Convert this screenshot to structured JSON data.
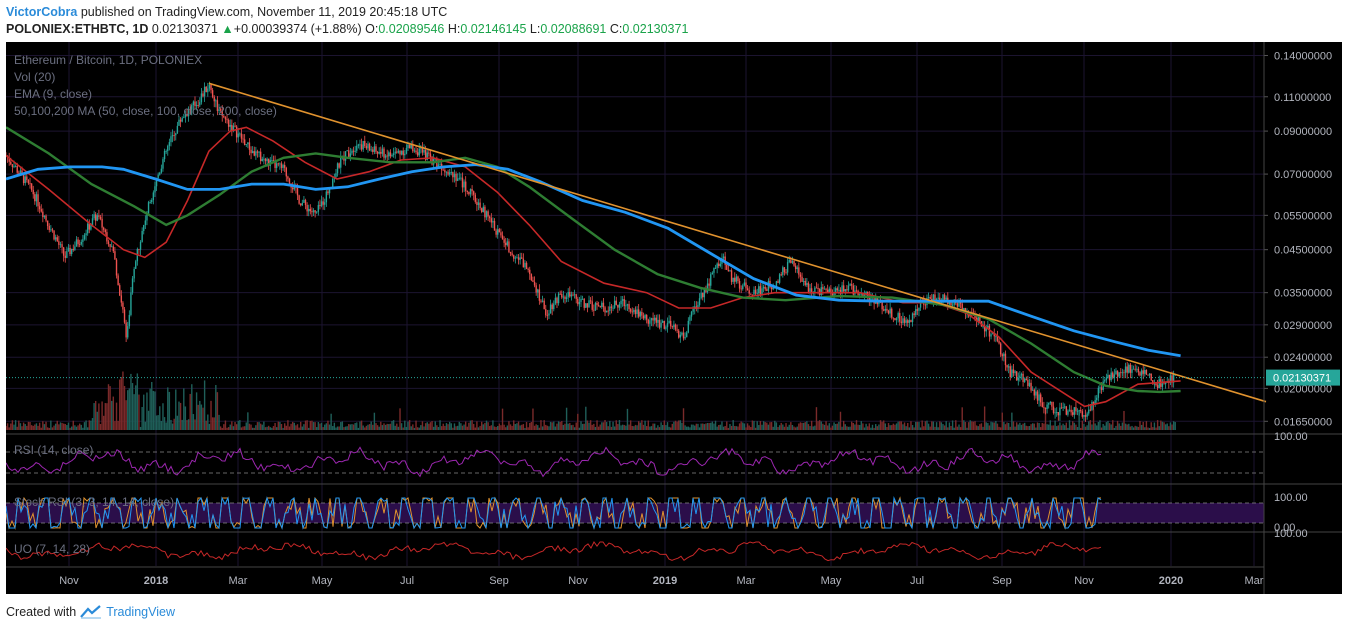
{
  "header": {
    "author": "VictorCobra",
    "published_text": "published on TradingView.com, November 11, 2019 20:45:18 UTC",
    "symbol": "POLONIEX:ETHBTC, 1D",
    "last": "0.02130371",
    "change": "+0.00039374 (+1.88%)",
    "o_label": "O:",
    "o_value": "0.02089546",
    "h_label": "H:",
    "h_value": "0.02146145",
    "l_label": "L:",
    "l_value": "0.02088691",
    "c_label": "C:",
    "c_value": "0.02130371"
  },
  "indicators": {
    "title": "Ethereum / Bitcoin, 1D, POLONIEX",
    "vol": "Vol (20)",
    "ema": "EMA (9, close)",
    "ma": "50,100,200 MA (50, close, 100, close, 200, close)",
    "rsi": "RSI (14, close)",
    "stoch": "Stoch RSI (3, 3, 14, 14, close)",
    "uo": "UO (7, 14, 28)"
  },
  "footer": {
    "created_with": "Created with",
    "brand": "TradingView"
  },
  "colors": {
    "background": "#000000",
    "candle_up": "#26a69a",
    "candle_down": "#ef5350",
    "ma50": "#c62828",
    "ma100": "#2e7d32",
    "ma200": "#2196f3",
    "trendline": "#e0922e",
    "rsi": "#9c27b0",
    "stoch_k": "#2196f3",
    "stoch_d": "#e0922e",
    "uo": "#c62828",
    "price_label_bg": "#26a69a"
  },
  "chart_data": {
    "type": "line",
    "title": "Ethereum / Bitcoin, 1D, POLONIEX",
    "price_axis": [
      "0.14000000",
      "0.11000000",
      "0.09000000",
      "0.07000000",
      "0.05500000",
      "0.04500000",
      "0.03500000",
      "0.02900000",
      "0.02400000",
      "0.02000000",
      "0.01650000"
    ],
    "current_price_label": "0.02130371",
    "current_price": 0.02130371,
    "rsi_axis": [
      "100.00"
    ],
    "stoch_axis": [
      "100.00",
      "0.00"
    ],
    "uo_axis": [
      "100.00"
    ],
    "time_axis": [
      "Nov",
      "2018",
      "Mar",
      "May",
      "Jul",
      "Sep",
      "Nov",
      "2019",
      "Mar",
      "May",
      "Jul",
      "Sep",
      "Nov",
      "2020",
      "Mar"
    ],
    "time_axis_bold": [
      "2018",
      "2019",
      "2020"
    ],
    "series": [
      {
        "name": "ETHBTC",
        "values": [
          [
            0,
            0.078
          ],
          [
            10,
            0.072
          ],
          [
            25,
            0.063
          ],
          [
            40,
            0.052
          ],
          [
            55,
            0.043
          ],
          [
            70,
            0.048
          ],
          [
            85,
            0.055
          ],
          [
            100,
            0.045
          ],
          [
            108,
            0.033
          ],
          [
            113,
            0.027
          ],
          [
            120,
            0.04
          ],
          [
            135,
            0.06
          ],
          [
            150,
            0.08
          ],
          [
            165,
            0.098
          ],
          [
            180,
            0.107
          ],
          [
            190,
            0.118
          ],
          [
            200,
            0.1
          ],
          [
            215,
            0.09
          ],
          [
            230,
            0.08
          ],
          [
            245,
            0.075
          ],
          [
            260,
            0.072
          ],
          [
            275,
            0.06
          ],
          [
            290,
            0.055
          ],
          [
            300,
            0.062
          ],
          [
            315,
            0.077
          ],
          [
            330,
            0.084
          ],
          [
            345,
            0.08
          ],
          [
            360,
            0.078
          ],
          [
            380,
            0.082
          ],
          [
            400,
            0.076
          ],
          [
            420,
            0.07
          ],
          [
            440,
            0.06
          ],
          [
            460,
            0.05
          ],
          [
            475,
            0.044
          ],
          [
            490,
            0.04
          ],
          [
            505,
            0.031
          ],
          [
            520,
            0.035
          ],
          [
            540,
            0.033
          ],
          [
            560,
            0.032
          ],
          [
            580,
            0.033
          ],
          [
            600,
            0.03
          ],
          [
            620,
            0.029
          ],
          [
            635,
            0.027
          ],
          [
            645,
            0.032
          ],
          [
            660,
            0.038
          ],
          [
            670,
            0.043
          ],
          [
            680,
            0.038
          ],
          [
            700,
            0.035
          ],
          [
            720,
            0.037
          ],
          [
            735,
            0.042
          ],
          [
            750,
            0.036
          ],
          [
            770,
            0.035
          ],
          [
            790,
            0.036
          ],
          [
            810,
            0.034
          ],
          [
            830,
            0.031
          ],
          [
            845,
            0.029
          ],
          [
            855,
            0.033
          ],
          [
            870,
            0.034
          ],
          [
            890,
            0.033
          ],
          [
            910,
            0.03
          ],
          [
            925,
            0.027
          ],
          [
            940,
            0.022
          ],
          [
            955,
            0.021
          ],
          [
            970,
            0.0185
          ],
          [
            985,
            0.0175
          ],
          [
            1000,
            0.0175
          ],
          [
            1010,
            0.0168
          ],
          [
            1020,
            0.019
          ],
          [
            1030,
            0.021
          ],
          [
            1040,
            0.022
          ],
          [
            1050,
            0.0225
          ],
          [
            1065,
            0.022
          ],
          [
            1080,
            0.0205
          ],
          [
            1090,
            0.021
          ],
          [
            1095,
            0.0213
          ]
        ]
      },
      {
        "name": "MA 50",
        "values": [
          [
            0,
            0.078
          ],
          [
            40,
            0.064
          ],
          [
            80,
            0.052
          ],
          [
            110,
            0.045
          ],
          [
            130,
            0.043
          ],
          [
            150,
            0.047
          ],
          [
            170,
            0.06
          ],
          [
            190,
            0.08
          ],
          [
            210,
            0.09
          ],
          [
            225,
            0.092
          ],
          [
            250,
            0.085
          ],
          [
            280,
            0.075
          ],
          [
            310,
            0.068
          ],
          [
            340,
            0.071
          ],
          [
            370,
            0.076
          ],
          [
            400,
            0.077
          ],
          [
            430,
            0.073
          ],
          [
            460,
            0.063
          ],
          [
            490,
            0.052
          ],
          [
            520,
            0.042
          ],
          [
            560,
            0.037
          ],
          [
            600,
            0.035
          ],
          [
            630,
            0.032
          ],
          [
            660,
            0.032
          ],
          [
            690,
            0.034
          ],
          [
            720,
            0.035
          ],
          [
            760,
            0.035
          ],
          [
            800,
            0.035
          ],
          [
            840,
            0.033
          ],
          [
            870,
            0.033
          ],
          [
            900,
            0.031
          ],
          [
            930,
            0.027
          ],
          [
            960,
            0.022
          ],
          [
            990,
            0.0195
          ],
          [
            1010,
            0.018
          ],
          [
            1030,
            0.0185
          ],
          [
            1060,
            0.0205
          ],
          [
            1090,
            0.0208
          ],
          [
            1100,
            0.0209
          ]
        ]
      },
      {
        "name": "MA 100",
        "values": [
          [
            0,
            0.092
          ],
          [
            40,
            0.079
          ],
          [
            80,
            0.066
          ],
          [
            120,
            0.058
          ],
          [
            150,
            0.052
          ],
          [
            170,
            0.055
          ],
          [
            200,
            0.062
          ],
          [
            230,
            0.071
          ],
          [
            260,
            0.077
          ],
          [
            290,
            0.079
          ],
          [
            320,
            0.077
          ],
          [
            360,
            0.075
          ],
          [
            400,
            0.075
          ],
          [
            430,
            0.077
          ],
          [
            460,
            0.073
          ],
          [
            490,
            0.065
          ],
          [
            530,
            0.054
          ],
          [
            570,
            0.045
          ],
          [
            610,
            0.039
          ],
          [
            650,
            0.036
          ],
          [
            690,
            0.034
          ],
          [
            730,
            0.0335
          ],
          [
            780,
            0.0343
          ],
          [
            830,
            0.034
          ],
          [
            880,
            0.0325
          ],
          [
            920,
            0.03
          ],
          [
            960,
            0.026
          ],
          [
            1000,
            0.022
          ],
          [
            1030,
            0.0203
          ],
          [
            1060,
            0.0197
          ],
          [
            1080,
            0.0196
          ],
          [
            1100,
            0.0197
          ]
        ]
      },
      {
        "name": "MA 200",
        "values": [
          [
            0,
            0.068
          ],
          [
            30,
            0.072
          ],
          [
            60,
            0.073
          ],
          [
            90,
            0.073
          ],
          [
            110,
            0.072
          ],
          [
            140,
            0.068
          ],
          [
            170,
            0.064
          ],
          [
            200,
            0.064
          ],
          [
            230,
            0.066
          ],
          [
            260,
            0.066
          ],
          [
            290,
            0.064
          ],
          [
            320,
            0.065
          ],
          [
            350,
            0.068
          ],
          [
            380,
            0.071
          ],
          [
            410,
            0.073
          ],
          [
            440,
            0.074
          ],
          [
            470,
            0.072
          ],
          [
            500,
            0.067
          ],
          [
            540,
            0.06
          ],
          [
            580,
            0.056
          ],
          [
            620,
            0.051
          ],
          [
            660,
            0.044
          ],
          [
            700,
            0.038
          ],
          [
            740,
            0.0345
          ],
          [
            780,
            0.0335
          ],
          [
            820,
            0.0333
          ],
          [
            870,
            0.0333
          ],
          [
            920,
            0.0333
          ],
          [
            960,
            0.0305
          ],
          [
            1000,
            0.028
          ],
          [
            1040,
            0.0262
          ],
          [
            1070,
            0.025
          ],
          [
            1100,
            0.0242
          ]
        ]
      },
      {
        "name": "Trendline",
        "values": [
          [
            190,
            0.119
          ],
          [
            1180,
            0.0185
          ]
        ]
      }
    ],
    "ylim": [
      0.0155,
      0.148
    ],
    "log_scale": true,
    "grid": true
  }
}
